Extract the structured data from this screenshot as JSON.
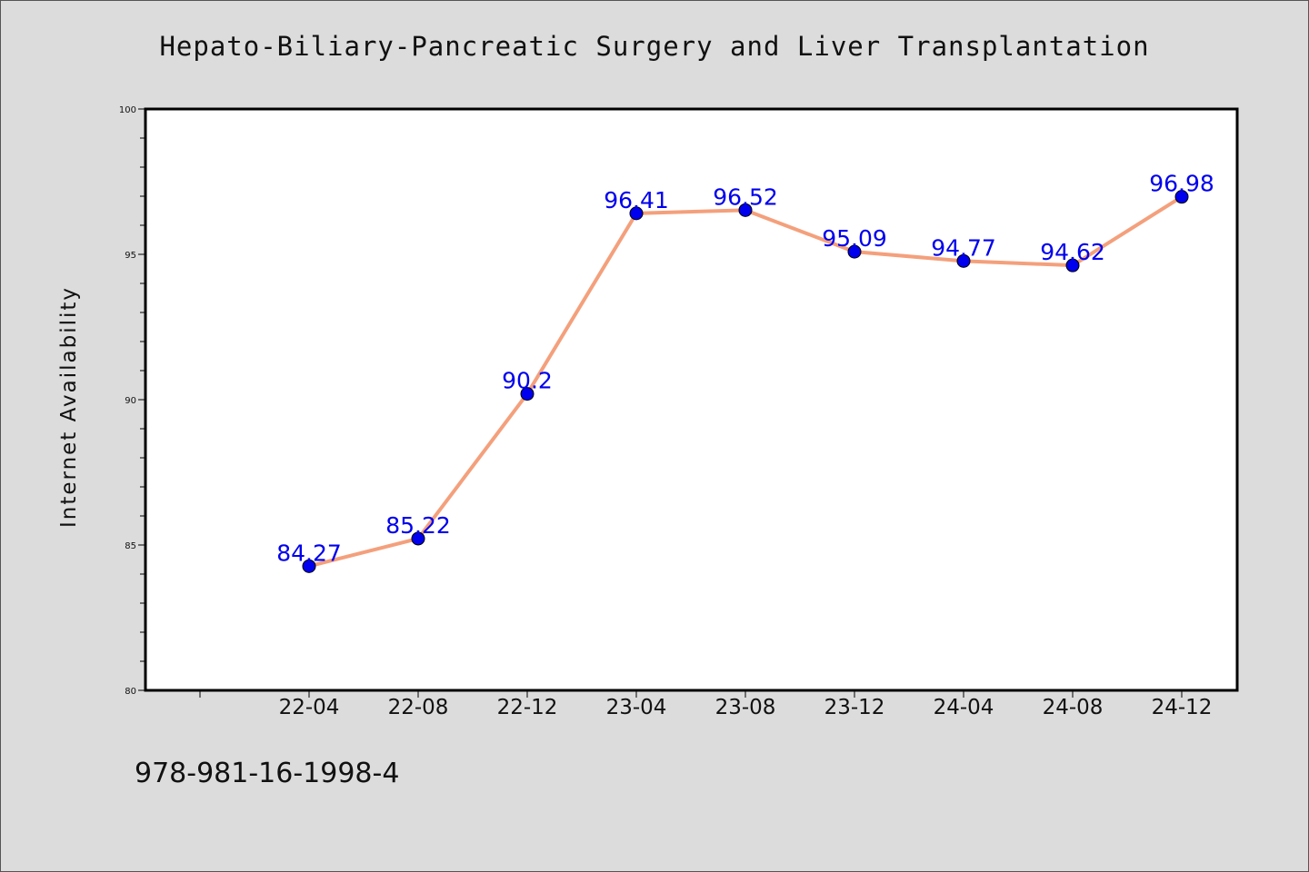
{
  "chart_data": {
    "type": "line",
    "title": "Hepato-Biliary-Pancreatic Surgery and Liver Transplantation",
    "xlabel": "",
    "ylabel": "Internet Availability",
    "categories": [
      "22-04",
      "22-08",
      "22-12",
      "23-04",
      "23-08",
      "23-12",
      "24-04",
      "24-08",
      "24-12"
    ],
    "series": [
      {
        "values": [
          84.27,
          85.22,
          90.2,
          96.41,
          96.52,
          95.09,
          94.77,
          94.62,
          96.98
        ]
      }
    ],
    "data_labels": [
      "84.27",
      "85.22",
      "90.2",
      "96.41",
      "96.52",
      "95.09",
      "94.77",
      "94.62",
      "96.98"
    ],
    "ylim": [
      80,
      100
    ],
    "yticks": [
      "80",
      "85",
      "90",
      "95",
      "100"
    ],
    "grid": false,
    "legend": "none",
    "colors": {
      "line": "#f4a07c",
      "marker": "#0000ee",
      "label": "#0000ee",
      "background": "#dcdcdc",
      "plot_area": "#ffffff"
    }
  },
  "footnote": "978-981-16-1998-4"
}
